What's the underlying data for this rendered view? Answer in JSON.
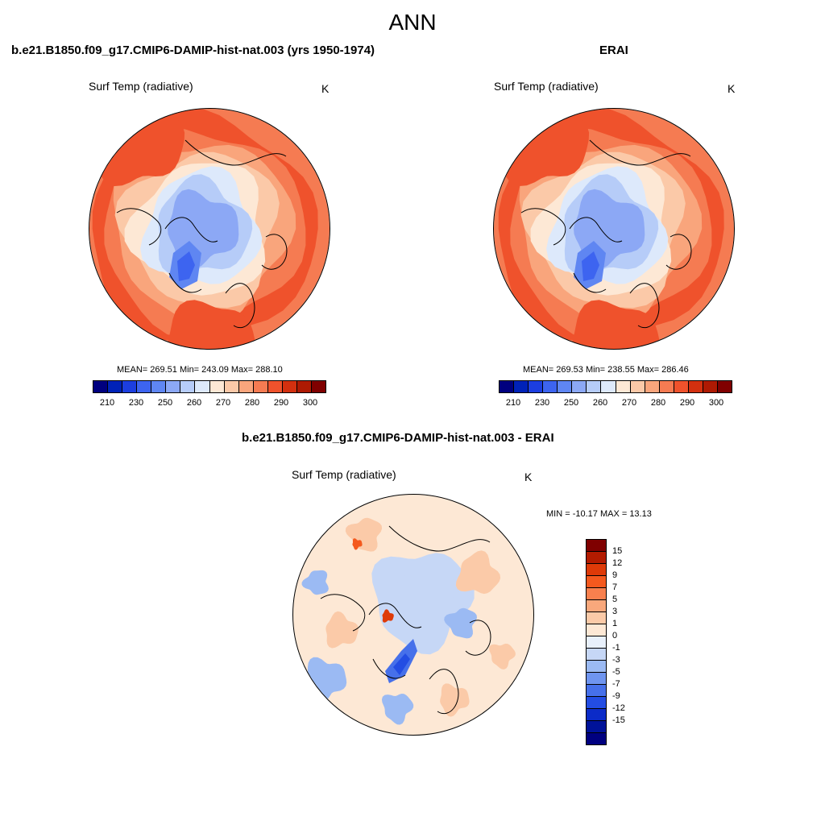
{
  "main_title": "ANN",
  "palette_abs": [
    "#00007f",
    "#0022b8",
    "#1c3ee0",
    "#3d64f0",
    "#5f86f2",
    "#8ca8f5",
    "#b6ccf8",
    "#dde9fb",
    "#fde8d5",
    "#fbc9a8",
    "#f9a57c",
    "#f57b52",
    "#ef522c",
    "#d3300f",
    "#ae1a03",
    "#800000"
  ],
  "palette_diff": [
    "#7f0000",
    "#b31b00",
    "#de3a08",
    "#f4591e",
    "#f8804e",
    "#f9a87c",
    "#fbcaa8",
    "#fde8d5",
    "#e8f0fb",
    "#c6d7f6",
    "#9bbaf3",
    "#6f95f0",
    "#4670ea",
    "#234de3",
    "#0b2bc8",
    "#001299",
    "#000080"
  ],
  "panels": [
    {
      "title": "b.e21.B1850.f09_g17.CMIP6-DAMIP-hist-nat.003 (yrs 1950-1974)",
      "variable": "Surf Temp (radiative)",
      "units": "K",
      "stats": "MEAN= 269.51  Min= 243.09  Max= 288.10",
      "colorbar_labels": [
        "210",
        "230",
        "250",
        "260",
        "270",
        "280",
        "290",
        "300"
      ]
    },
    {
      "title": "ERAI",
      "variable": "Surf Temp (radiative)",
      "units": "K",
      "stats": "MEAN= 269.53  Min= 238.55  Max= 286.46",
      "colorbar_labels": [
        "210",
        "230",
        "250",
        "260",
        "270",
        "280",
        "290",
        "300"
      ]
    }
  ],
  "difference": {
    "title": "b.e21.B1850.f09_g17.CMIP6-DAMIP-hist-nat.003 - ERAI",
    "variable": "Surf Temp (radiative)",
    "units": "K",
    "stats": "MIN = -10.17 MAX =  13.13",
    "colorbar_labels": [
      "15",
      "12",
      "9",
      "7",
      "5",
      "3",
      "1",
      "0",
      "-1",
      "-3",
      "-5",
      "-7",
      "-9",
      "-12",
      "-15"
    ]
  }
}
